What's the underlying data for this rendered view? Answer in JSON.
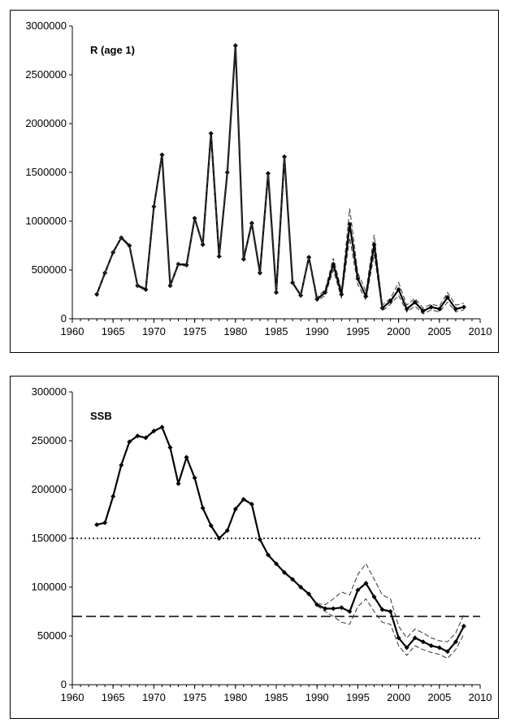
{
  "chart_data": [
    {
      "type": "line",
      "title": "R (age 1)",
      "xlabel": "",
      "ylabel": "",
      "xlim": [
        1960,
        2010
      ],
      "ylim": [
        0,
        3000000
      ],
      "x_ticks": [
        1960,
        1965,
        1970,
        1975,
        1980,
        1985,
        1990,
        1995,
        2000,
        2005,
        2010
      ],
      "y_ticks": [
        0,
        500000,
        1000000,
        1500000,
        2000000,
        2500000,
        3000000
      ],
      "grid": false,
      "series": [
        {
          "role": "estimate",
          "x": [
            1963,
            1964,
            1965,
            1966,
            1967,
            1968,
            1969,
            1970,
            1971,
            1972,
            1973,
            1974,
            1975,
            1976,
            1977,
            1978,
            1979,
            1980,
            1981,
            1982,
            1983,
            1984,
            1985,
            1986,
            1987,
            1988,
            1989,
            1990,
            1991,
            1992,
            1993,
            1994,
            1995,
            1996,
            1997,
            1998,
            1999,
            2000,
            2001,
            2002,
            2003,
            2004,
            2005,
            2006,
            2007,
            2008
          ],
          "values": [
            250000,
            470000,
            680000,
            830000,
            750000,
            340000,
            300000,
            1150000,
            1680000,
            340000,
            560000,
            550000,
            1030000,
            760000,
            1900000,
            640000,
            1500000,
            2800000,
            610000,
            980000,
            470000,
            1490000,
            270000,
            1660000,
            370000,
            240000,
            630000,
            200000,
            270000,
            560000,
            250000,
            970000,
            410000,
            230000,
            760000,
            110000,
            180000,
            300000,
            100000,
            170000,
            80000,
            120000,
            100000,
            220000,
            100000,
            120000
          ]
        },
        {
          "role": "upper bound",
          "x": [
            1963,
            1964,
            1965,
            1966,
            1967,
            1968,
            1969,
            1970,
            1971,
            1972,
            1973,
            1974,
            1975,
            1976,
            1977,
            1978,
            1979,
            1980,
            1981,
            1982,
            1983,
            1984,
            1985,
            1986,
            1987,
            1988,
            1989,
            1990,
            1991,
            1992,
            1993,
            1994,
            1995,
            1996,
            1997,
            1998,
            1999,
            2000,
            2001,
            2002,
            2003,
            2004,
            2005,
            2006,
            2007,
            2008
          ],
          "values": [
            255000,
            480000,
            690000,
            840000,
            760000,
            350000,
            310000,
            1160000,
            1690000,
            350000,
            570000,
            560000,
            1040000,
            770000,
            1920000,
            650000,
            1510000,
            2820000,
            620000,
            990000,
            480000,
            1500000,
            280000,
            1670000,
            380000,
            250000,
            640000,
            220000,
            300000,
            620000,
            290000,
            1130000,
            470000,
            280000,
            860000,
            140000,
            210000,
            370000,
            140000,
            210000,
            110000,
            150000,
            130000,
            270000,
            140000,
            160000
          ]
        },
        {
          "role": "lower bound",
          "x": [
            1963,
            1964,
            1965,
            1966,
            1967,
            1968,
            1969,
            1970,
            1971,
            1972,
            1973,
            1974,
            1975,
            1976,
            1977,
            1978,
            1979,
            1980,
            1981,
            1982,
            1983,
            1984,
            1985,
            1986,
            1987,
            1988,
            1989,
            1990,
            1991,
            1992,
            1993,
            1994,
            1995,
            1996,
            1997,
            1998,
            1999,
            2000,
            2001,
            2002,
            2003,
            2004,
            2005,
            2006,
            2007,
            2008
          ],
          "values": [
            245000,
            460000,
            670000,
            820000,
            740000,
            330000,
            290000,
            1140000,
            1670000,
            330000,
            550000,
            540000,
            1020000,
            750000,
            1880000,
            630000,
            1490000,
            2780000,
            600000,
            970000,
            460000,
            1480000,
            260000,
            1650000,
            360000,
            230000,
            620000,
            180000,
            240000,
            500000,
            210000,
            830000,
            350000,
            190000,
            660000,
            80000,
            150000,
            240000,
            70000,
            130000,
            50000,
            90000,
            70000,
            170000,
            70000,
            90000
          ]
        }
      ]
    },
    {
      "type": "line",
      "title": "SSB",
      "xlabel": "",
      "ylabel": "",
      "xlim": [
        1960,
        2010
      ],
      "ylim": [
        0,
        300000
      ],
      "x_ticks": [
        1960,
        1965,
        1970,
        1975,
        1980,
        1985,
        1990,
        1995,
        2000,
        2005,
        2010
      ],
      "y_ticks": [
        0,
        50000,
        100000,
        150000,
        200000,
        250000,
        300000
      ],
      "grid": false,
      "reference_lines": [
        {
          "value": 150000,
          "style": "dotted"
        },
        {
          "value": 70000,
          "style": "dashed"
        }
      ],
      "series": [
        {
          "role": "estimate",
          "x": [
            1963,
            1964,
            1965,
            1966,
            1967,
            1968,
            1969,
            1970,
            1971,
            1972,
            1973,
            1974,
            1975,
            1976,
            1977,
            1978,
            1979,
            1980,
            1981,
            1982,
            1983,
            1984,
            1985,
            1986,
            1987,
            1988,
            1989,
            1990,
            1991,
            1992,
            1993,
            1994,
            1995,
            1996,
            1997,
            1998,
            1999,
            2000,
            2001,
            2002,
            2003,
            2004,
            2005,
            2006,
            2007,
            2008
          ],
          "values": [
            164000,
            166000,
            193000,
            225000,
            249000,
            255000,
            253000,
            260000,
            264000,
            243000,
            206000,
            233000,
            212000,
            181000,
            163000,
            150000,
            158000,
            180000,
            190000,
            185000,
            149000,
            133000,
            124000,
            115000,
            108000,
            100000,
            93000,
            82000,
            78000,
            78000,
            79000,
            75000,
            97000,
            104000,
            90000,
            77000,
            75000,
            48000,
            38000,
            48000,
            44000,
            40000,
            38000,
            34000,
            44000,
            60000
          ]
        },
        {
          "role": "upper bound",
          "x": [
            1990,
            1991,
            1992,
            1993,
            1994,
            1995,
            1996,
            1997,
            1998,
            1999,
            2000,
            2001,
            2002,
            2003,
            2004,
            2005,
            2006,
            2007,
            2008
          ],
          "values": [
            83000,
            82000,
            88000,
            95000,
            92000,
            113000,
            124000,
            108000,
            92000,
            88000,
            60000,
            48000,
            57000,
            53000,
            48000,
            45000,
            44000,
            53000,
            72000
          ]
        },
        {
          "role": "lower bound",
          "x": [
            1990,
            1991,
            1992,
            1993,
            1994,
            1995,
            1996,
            1997,
            1998,
            1999,
            2000,
            2001,
            2002,
            2003,
            2004,
            2005,
            2006,
            2007,
            2008
          ],
          "values": [
            81000,
            75000,
            70000,
            64000,
            62000,
            80000,
            88000,
            75000,
            64000,
            62000,
            40000,
            30000,
            40000,
            36000,
            33000,
            31000,
            27000,
            36000,
            52000
          ]
        }
      ]
    }
  ]
}
